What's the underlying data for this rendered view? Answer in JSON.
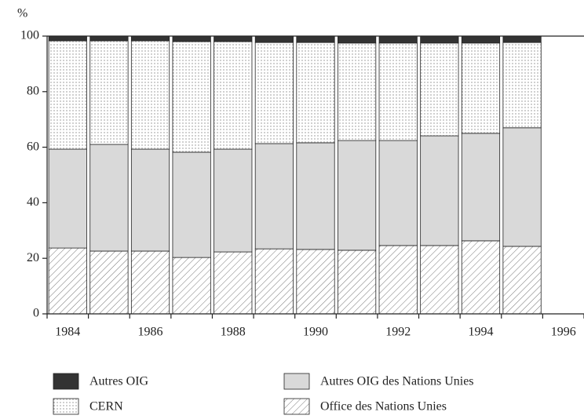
{
  "chart_data": {
    "type": "stacked_bar",
    "y_label": "%",
    "categories": [
      "1984",
      null,
      "1986",
      null,
      "1988",
      null,
      "1990",
      null,
      "1992",
      null,
      "1994",
      null,
      "1996"
    ],
    "ylim": [
      0,
      100
    ],
    "yticks": [
      0,
      20,
      40,
      60,
      80,
      100
    ],
    "series": [
      {
        "name": "Office des Nations Unies",
        "color": "#ffffff",
        "pattern": "hatch",
        "values": [
          23.7,
          22.6,
          22.6,
          20.3,
          22.3,
          23.4,
          23.2,
          22.9,
          24.6,
          24.6,
          26.3,
          24.3,
          null
        ]
      },
      {
        "name": "Autres OIG des Nations Unies",
        "color": "#d9d9d9",
        "pattern": "solid",
        "values": [
          35.6,
          38.4,
          36.7,
          37.9,
          37.0,
          37.9,
          38.4,
          39.5,
          37.8,
          39.5,
          38.7,
          42.7,
          null
        ]
      },
      {
        "name": "CERN",
        "color": "#ffffff",
        "pattern": "vertical-lines",
        "values": [
          39.0,
          37.3,
          39.0,
          39.8,
          38.7,
          36.4,
          36.1,
          35.1,
          35.1,
          33.4,
          32.5,
          30.7,
          null
        ]
      },
      {
        "name": "Autres OIG",
        "color": "#333333",
        "pattern": "solid",
        "values": [
          1.7,
          1.7,
          1.7,
          2.0,
          2.0,
          2.3,
          2.3,
          2.5,
          2.5,
          2.5,
          2.5,
          2.3,
          null
        ]
      }
    ]
  }
}
